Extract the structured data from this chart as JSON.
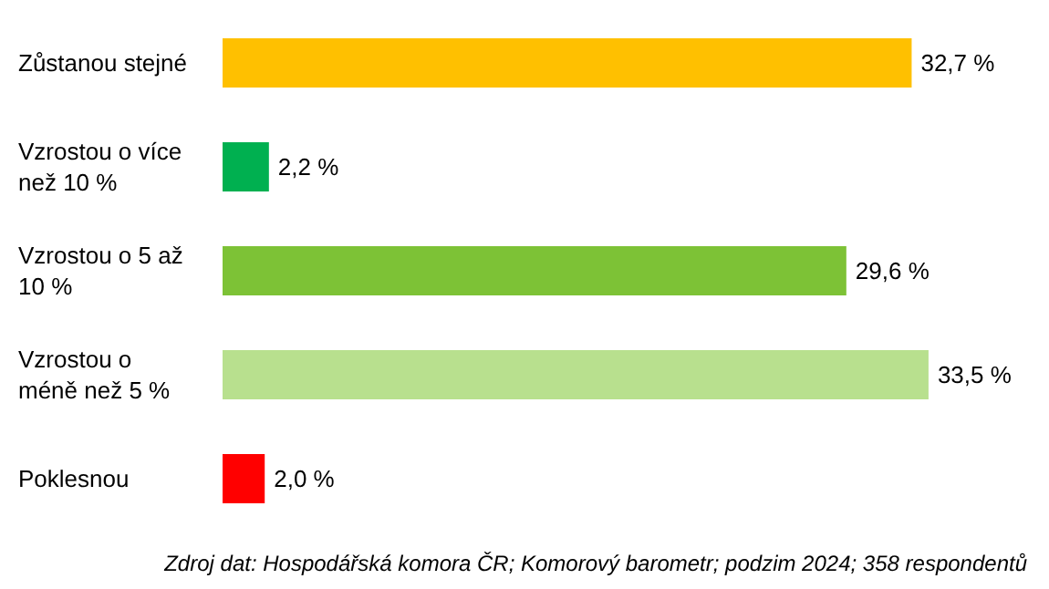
{
  "chart_data": {
    "type": "bar",
    "orientation": "horizontal",
    "categories": [
      "Zůstanou stejné",
      "Vzrostou o více než 10 %",
      "Vzrostou o 5 až 10 %",
      "Vzrostou o méně než 5 %",
      "Poklesnou"
    ],
    "values": [
      32.7,
      2.2,
      29.6,
      33.5,
      2.0
    ],
    "colors": [
      "#ffc000",
      "#00b050",
      "#7dc236",
      "#b8e08e",
      "#ff0000"
    ],
    "value_labels": [
      "32,7 %",
      "2,2 %",
      "29,6 %",
      "33,5 %",
      "2,0 %"
    ],
    "annotations": [
      "Zdroj dat: Hospodářská komora ČR; Komorový barometr; podzim 2024; 358 respondentů"
    ]
  }
}
